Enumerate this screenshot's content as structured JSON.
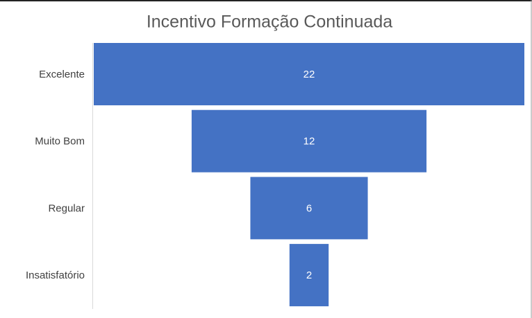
{
  "chart_data": {
    "type": "funnel",
    "title": "Incentivo Formação Continuada",
    "categories": [
      "Excelente",
      "Muito Bom",
      "Regular",
      "Insatisfatório"
    ],
    "values": [
      22,
      12,
      6,
      2
    ],
    "color": "#4472c4"
  }
}
